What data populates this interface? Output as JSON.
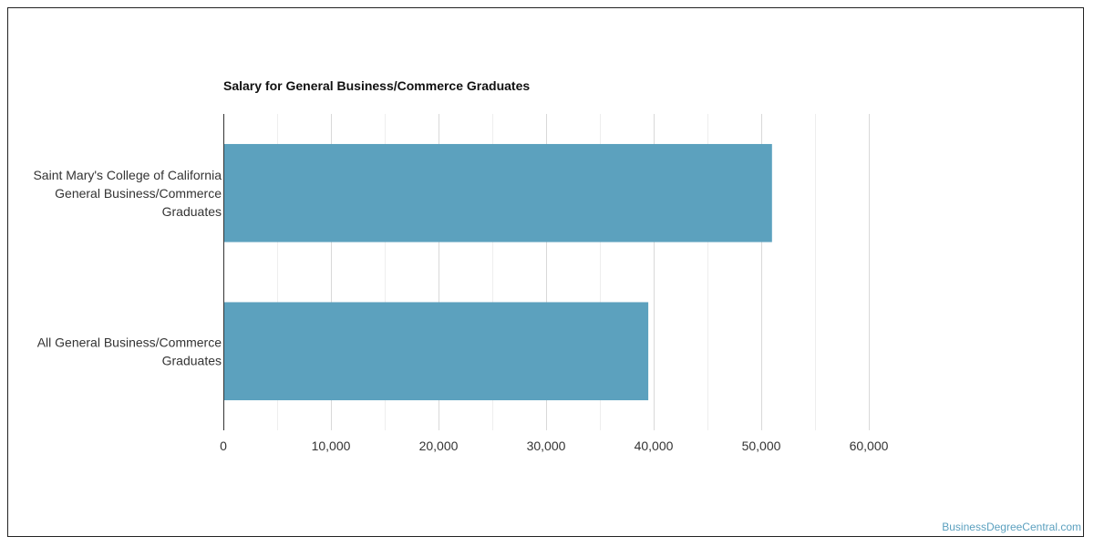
{
  "chart_data": {
    "type": "bar",
    "orientation": "horizontal",
    "title": "Salary for General Business/Commerce Graduates",
    "categories": [
      [
        "Saint Mary's College of California",
        "General Business/Commerce",
        "Graduates"
      ],
      [
        "All General Business/Commerce",
        "Graduates"
      ]
    ],
    "values": [
      51000,
      39500
    ],
    "xlim": [
      0,
      60000
    ],
    "xticks": [
      0,
      10000,
      20000,
      30000,
      40000,
      50000,
      60000
    ],
    "xtick_labels": [
      "0",
      "10,000",
      "20,000",
      "30,000",
      "40,000",
      "50,000",
      "60,000"
    ],
    "grid": true,
    "bar_color": "#5ca1be",
    "grid_color": "#d9d9d9",
    "minor_grid_color": "#eeeeee"
  },
  "watermark": "BusinessDegreeCentral.com"
}
